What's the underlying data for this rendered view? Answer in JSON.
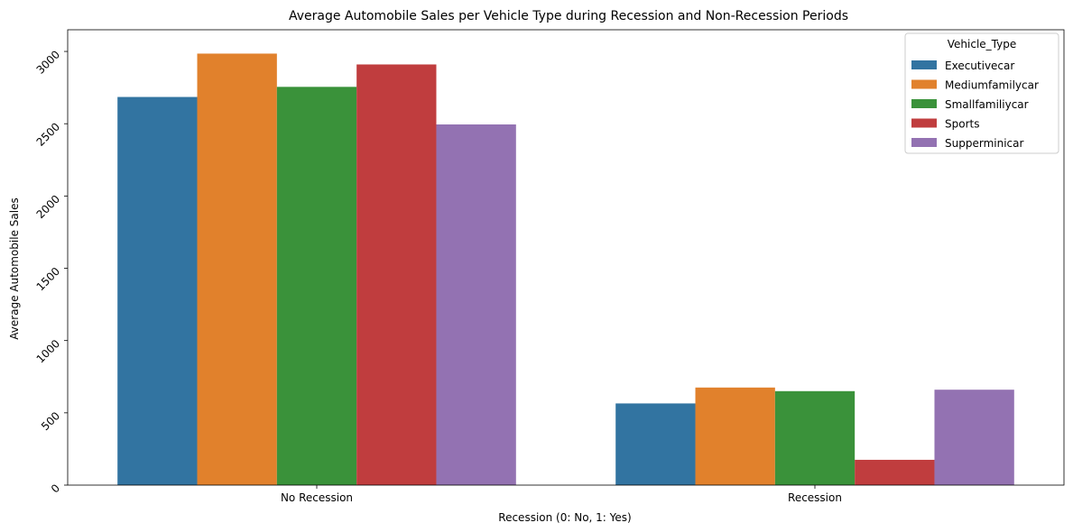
{
  "chart_data": {
    "type": "bar",
    "title": "Average Automobile Sales per Vehicle Type during Recession and Non-Recession Periods",
    "xlabel": "Recession (0: No, 1: Yes)",
    "ylabel": "Average Automobile Sales",
    "categories": [
      "No Recession",
      "Recession"
    ],
    "ylim": [
      0,
      3150
    ],
    "yticks": [
      0,
      500,
      1000,
      1500,
      2000,
      2500,
      3000
    ],
    "grid": false,
    "legend": {
      "title": "Vehicle_Type",
      "position": "top-right"
    },
    "series": [
      {
        "name": "Executivecar",
        "color": "#3274a1",
        "values": [
          2685,
          565
        ]
      },
      {
        "name": "Mediumfamilycar",
        "color": "#e1812c",
        "values": [
          2985,
          675
        ]
      },
      {
        "name": "Smallfamiliycar",
        "color": "#3a923a",
        "values": [
          2755,
          650
        ]
      },
      {
        "name": "Sports",
        "color": "#c03d3e",
        "values": [
          2910,
          175
        ]
      },
      {
        "name": "Supperminicar",
        "color": "#9372b2",
        "values": [
          2495,
          660
        ]
      }
    ]
  }
}
